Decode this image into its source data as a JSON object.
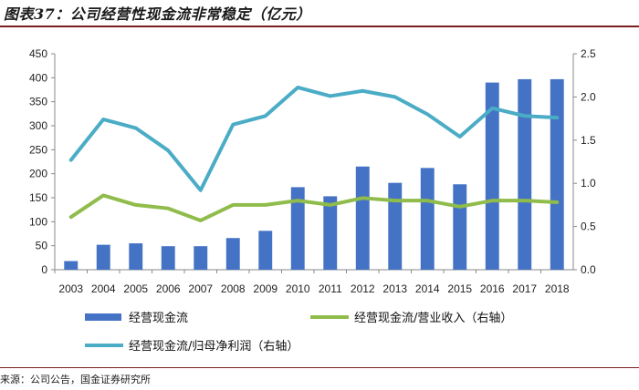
{
  "header": {
    "title": "图表37：公司经营性现金流非常稳定（亿元）"
  },
  "footer": {
    "source": "来源：公司公告，国金证券研究所"
  },
  "chart_data": {
    "type": "bar",
    "title": "图表37：公司经营性现金流非常稳定（亿元）",
    "categories": [
      "2003",
      "2004",
      "2005",
      "2006",
      "2007",
      "2008",
      "2009",
      "2010",
      "2011",
      "2012",
      "2013",
      "2014",
      "2015",
      "2016",
      "2017",
      "2018"
    ],
    "y_left": {
      "ylim": [
        0,
        450
      ],
      "ticks": [
        0,
        50,
        100,
        150,
        200,
        250,
        300,
        350,
        400,
        450
      ]
    },
    "y_right": {
      "ylim": [
        0,
        2.5
      ],
      "ticks": [
        "0.0",
        "0.5",
        "1.0",
        "1.5",
        "2.0",
        "2.5"
      ]
    },
    "series": [
      {
        "name": "经营现金流",
        "type": "bar",
        "axis": "left",
        "color": "#4472c4",
        "values": [
          18,
          52,
          55,
          49,
          49,
          66,
          81,
          172,
          153,
          215,
          181,
          212,
          178,
          390,
          397,
          397
        ]
      },
      {
        "name": "经营现金流/营业收入（右轴）",
        "type": "line",
        "axis": "right",
        "color": "#8fbc4b",
        "values": [
          0.61,
          0.86,
          0.75,
          0.71,
          0.57,
          0.75,
          0.75,
          0.8,
          0.75,
          0.83,
          0.8,
          0.8,
          0.73,
          0.8,
          0.8,
          0.78
        ]
      },
      {
        "name": "经营现金流/归母净利润（右轴）",
        "type": "line",
        "axis": "right",
        "color": "#4bacc6",
        "values": [
          1.27,
          1.74,
          1.64,
          1.38,
          0.92,
          1.68,
          1.78,
          2.11,
          2.01,
          2.07,
          2.0,
          1.8,
          1.54,
          1.87,
          1.78,
          1.76
        ]
      }
    ],
    "legend": [
      "经营现金流",
      "经营现金流/营业收入（右轴）",
      "经营现金流/归母净利润（右轴）"
    ]
  }
}
